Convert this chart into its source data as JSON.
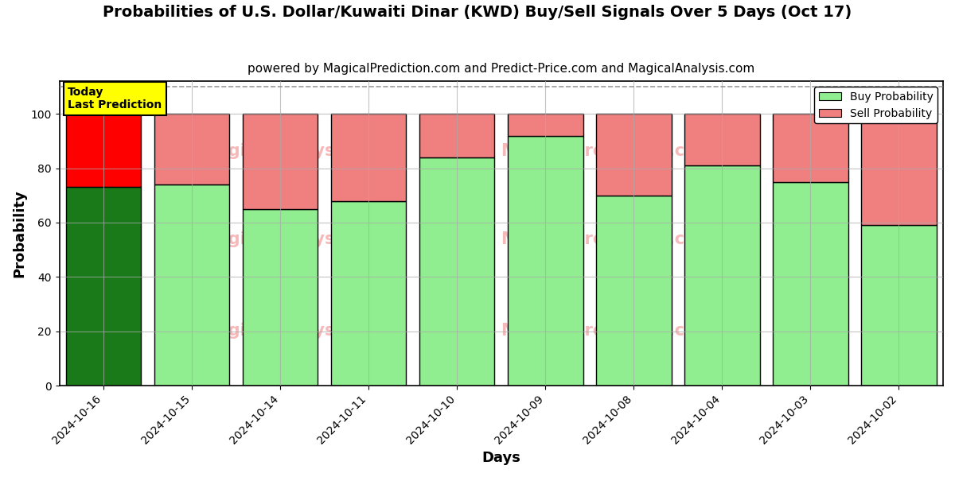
{
  "title": "Probabilities of U.S. Dollar/Kuwaiti Dinar (KWD) Buy/Sell Signals Over 5 Days (Oct 17)",
  "subtitle": "powered by MagicalPrediction.com and Predict-Price.com and MagicalAnalysis.com",
  "xlabel": "Days",
  "ylabel": "Probability",
  "categories": [
    "2024-10-16",
    "2024-10-15",
    "2024-10-14",
    "2024-10-11",
    "2024-10-10",
    "2024-10-09",
    "2024-10-08",
    "2024-10-04",
    "2024-10-03",
    "2024-10-02"
  ],
  "buy_values": [
    73,
    74,
    65,
    68,
    84,
    92,
    70,
    81,
    75,
    59
  ],
  "sell_values": [
    27,
    26,
    35,
    32,
    16,
    8,
    30,
    19,
    25,
    41
  ],
  "today_buy_color": "#1a7a1a",
  "today_sell_color": "#ff0000",
  "buy_color": "#90ee90",
  "sell_color": "#f08080",
  "today_annotation_bg": "#ffff00",
  "today_annotation_text": "Today\nLast Prediction",
  "ylim": [
    0,
    112
  ],
  "yticks": [
    0,
    20,
    40,
    60,
    80,
    100
  ],
  "legend_buy_label": "Buy Probability",
  "legend_sell_label": "Sell Probability",
  "title_fontsize": 14,
  "subtitle_fontsize": 11,
  "axis_label_fontsize": 13,
  "tick_fontsize": 10,
  "bar_edge_color": "#000000",
  "bar_linewidth": 1.0,
  "grid_color": "#aaaaaa",
  "grid_linewidth": 0.8,
  "bar_width": 0.85,
  "fig_bg_color": "#ffffff",
  "axes_bg_color": "#ffffff"
}
